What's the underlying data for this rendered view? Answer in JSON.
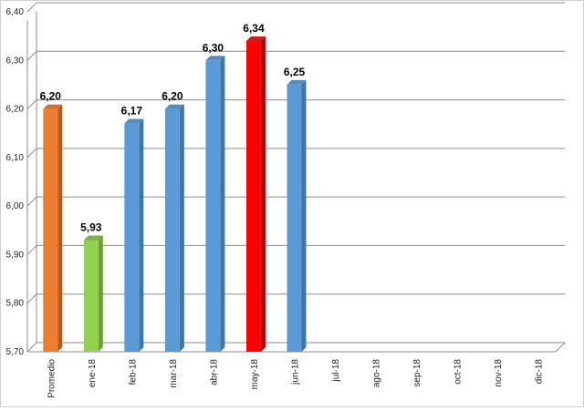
{
  "chart_data": {
    "type": "bar",
    "categories": [
      "Promedio",
      "ene-18",
      "feb-18",
      "mar-18",
      "abr-18",
      "may-18",
      "jun-18",
      "jul-18",
      "ago-18",
      "sep-18",
      "oct-18",
      "nov-18",
      "dic-18"
    ],
    "values": [
      6.2,
      5.93,
      6.17,
      6.2,
      6.3,
      6.34,
      6.25,
      null,
      null,
      null,
      null,
      null,
      null
    ],
    "data_labels": [
      "6,20",
      "5,93",
      "6,17",
      "6,20",
      "6,30",
      "6,34",
      "6,25",
      "",
      "",
      "",
      "",
      "",
      ""
    ],
    "colors": [
      "#ED7D31",
      "#92D050",
      "#5B9BD5",
      "#5B9BD5",
      "#5B9BD5",
      "#FF0000",
      "#5B9BD5",
      "#5B9BD5",
      "#5B9BD5",
      "#5B9BD5",
      "#5B9BD5",
      "#5B9BD5",
      "#5B9BD5"
    ],
    "side_colors": [
      "#B85A1F",
      "#6E9E36",
      "#3F76A8",
      "#3F76A8",
      "#3F76A8",
      "#B00000",
      "#3F76A8",
      "#3F76A8",
      "#3F76A8",
      "#3F76A8",
      "#3F76A8",
      "#3F76A8",
      "#3F76A8"
    ],
    "y_ticks": [
      "5,70",
      "5,80",
      "5,90",
      "6,00",
      "6,10",
      "6,20",
      "6,30",
      "6,40"
    ],
    "y_tick_values": [
      5.7,
      5.8,
      5.9,
      6.0,
      6.1,
      6.2,
      6.3,
      6.4
    ],
    "ylim": [
      5.7,
      6.4
    ],
    "title": "",
    "xlabel": "",
    "ylabel": "",
    "grid": true,
    "legend": "none"
  }
}
